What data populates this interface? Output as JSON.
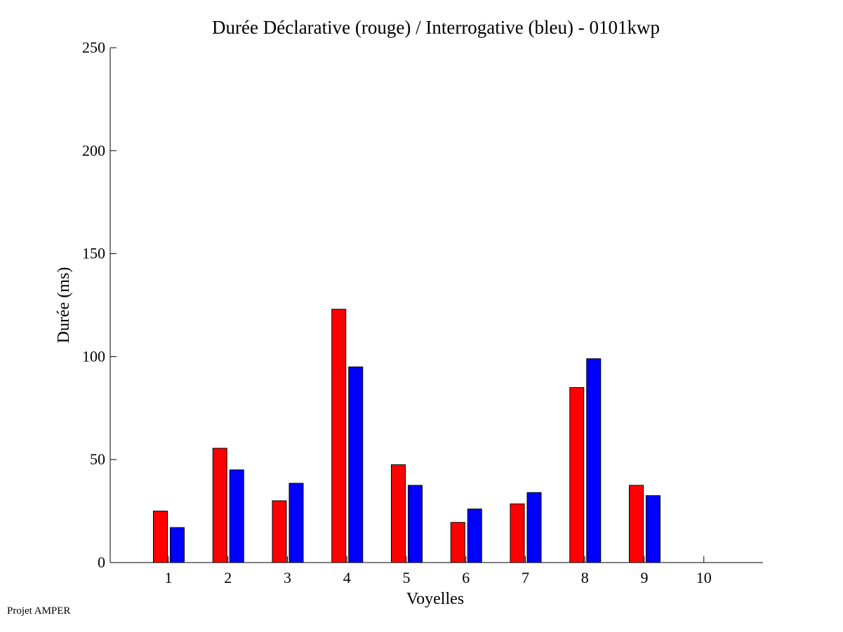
{
  "footer": {
    "text": "Projet AMPER"
  },
  "chart_data": {
    "type": "bar",
    "title": "Durée Déclarative (rouge) / Interrogative (bleu) - 0101kwp",
    "xlabel": "Voyelles",
    "ylabel": "Durée (ms)",
    "categories": [
      "1",
      "2",
      "3",
      "4",
      "5",
      "6",
      "7",
      "8",
      "9",
      "10"
    ],
    "ylim": [
      0,
      250
    ],
    "yticks": [
      0,
      50,
      100,
      150,
      200,
      250
    ],
    "grid": false,
    "legend": "none",
    "series": [
      {
        "color": "#ff0000",
        "values": [
          25,
          55.5,
          30,
          123,
          47.5,
          19.5,
          28.5,
          85,
          37.5,
          null
        ]
      },
      {
        "color": "#0000ff",
        "values": [
          17,
          45,
          38.5,
          95,
          37.5,
          26,
          34,
          99,
          32.5,
          null
        ]
      }
    ]
  }
}
